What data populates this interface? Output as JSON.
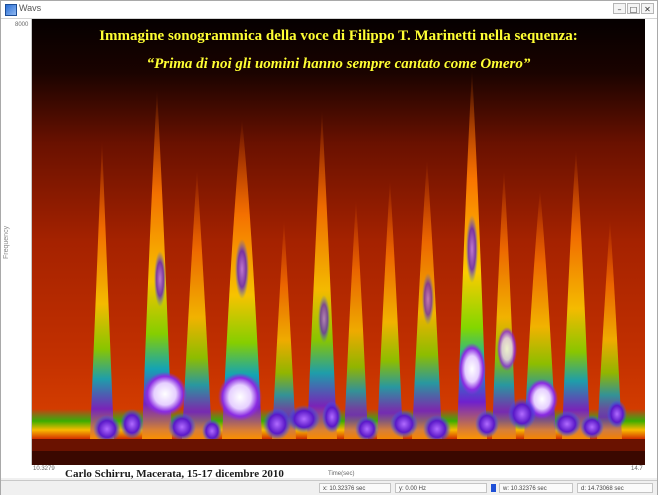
{
  "window": {
    "title": "Wavs",
    "controls": {
      "minimize": "–",
      "maximize": "□",
      "close": "✕"
    }
  },
  "plot": {
    "heading": "Immagine sonogrammica della voce di Filippo T. Marinetti nella sequenza:",
    "phrase": "“Prima di noi gli uomini hanno sempre cantato come Omero”",
    "credit": "Carlo Schirru, Macerata, 15-17 dicembre 2010",
    "y_axis_label": "Frequency",
    "y_tick_top": "8000",
    "x_tick_left": "10.3279",
    "x_tick_right": "14.7",
    "x_unit": "Time(sec)"
  },
  "status": {
    "field1": "x: 10.32376 sec",
    "field2": "y: 0.00 Hz",
    "field3": "w: 10.32376 sec",
    "field4": "d: 14.73068 sec"
  },
  "colors": {
    "background": "#000000",
    "text_yellow": "#ffff33"
  }
}
